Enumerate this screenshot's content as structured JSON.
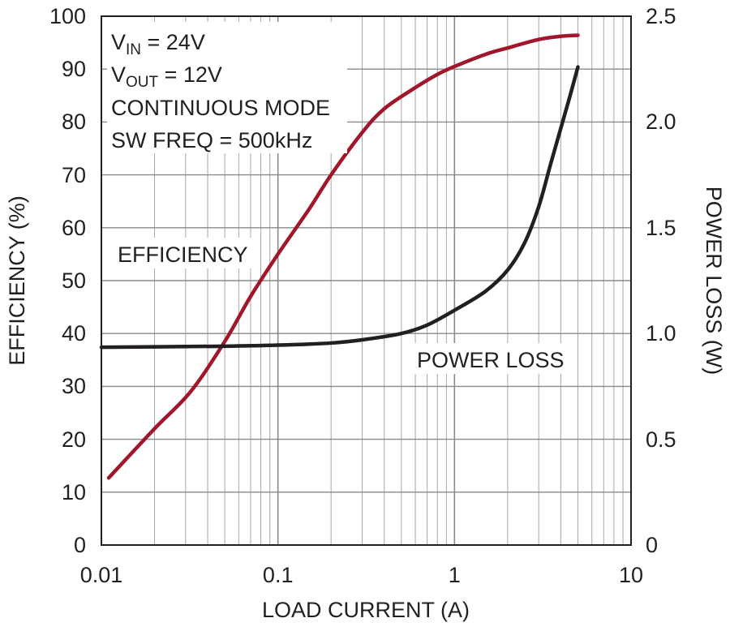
{
  "chart_data": {
    "type": "line",
    "xlabel": "LOAD CURRENT (A)",
    "ylabel_left": "EFFICIENCY (%)",
    "ylabel_right": "POWER LOSS (W)",
    "xscale": "log",
    "xlim": [
      0.01,
      10
    ],
    "ylim_left": [
      0,
      100
    ],
    "ylim_right": [
      0,
      2.5
    ],
    "grid": true,
    "x_ticks": [
      "0.01",
      "0.1",
      "1",
      "10"
    ],
    "y_left_ticks": [
      "0",
      "10",
      "20",
      "30",
      "40",
      "50",
      "60",
      "70",
      "80",
      "90",
      "100"
    ],
    "y_right_ticks": [
      "0",
      "0.5",
      "1.0",
      "1.5",
      "2.0",
      "2.5"
    ],
    "conditions": {
      "vin": {
        "prefix": "V",
        "sub": "IN",
        "suffix": " = 24V"
      },
      "vout": {
        "prefix": "V",
        "sub": "OUT",
        "suffix": " = 12V"
      },
      "mode": "CONTINUOUS MODE",
      "freq": "SW FREQ = 500kHz"
    },
    "series": [
      {
        "name": "EFFICIENCY",
        "axis": "left",
        "color": "#a0172b",
        "points": [
          [
            0.011,
            12.7
          ],
          [
            0.02,
            22
          ],
          [
            0.032,
            29
          ],
          [
            0.05,
            38.5
          ],
          [
            0.07,
            47
          ],
          [
            0.1,
            55
          ],
          [
            0.15,
            63.5
          ],
          [
            0.2,
            70
          ],
          [
            0.3,
            78
          ],
          [
            0.4,
            82.5
          ],
          [
            0.6,
            86.5
          ],
          [
            0.8,
            89
          ],
          [
            1,
            90.5
          ],
          [
            1.5,
            92.8
          ],
          [
            2,
            94
          ],
          [
            3,
            95.6
          ],
          [
            4,
            96.2
          ],
          [
            5,
            96.4
          ]
        ]
      },
      {
        "name": "POWER LOSS",
        "axis": "right",
        "color": "#231f20",
        "points": [
          [
            0.01,
            0.935
          ],
          [
            0.05,
            0.94
          ],
          [
            0.1,
            0.945
          ],
          [
            0.2,
            0.955
          ],
          [
            0.3,
            0.97
          ],
          [
            0.5,
            1.0
          ],
          [
            0.7,
            1.04
          ],
          [
            1,
            1.11
          ],
          [
            1.5,
            1.2
          ],
          [
            2,
            1.3
          ],
          [
            2.5,
            1.43
          ],
          [
            3,
            1.6
          ],
          [
            3.5,
            1.8
          ],
          [
            4,
            1.97
          ],
          [
            4.5,
            2.12
          ],
          [
            5,
            2.26
          ]
        ]
      }
    ]
  }
}
